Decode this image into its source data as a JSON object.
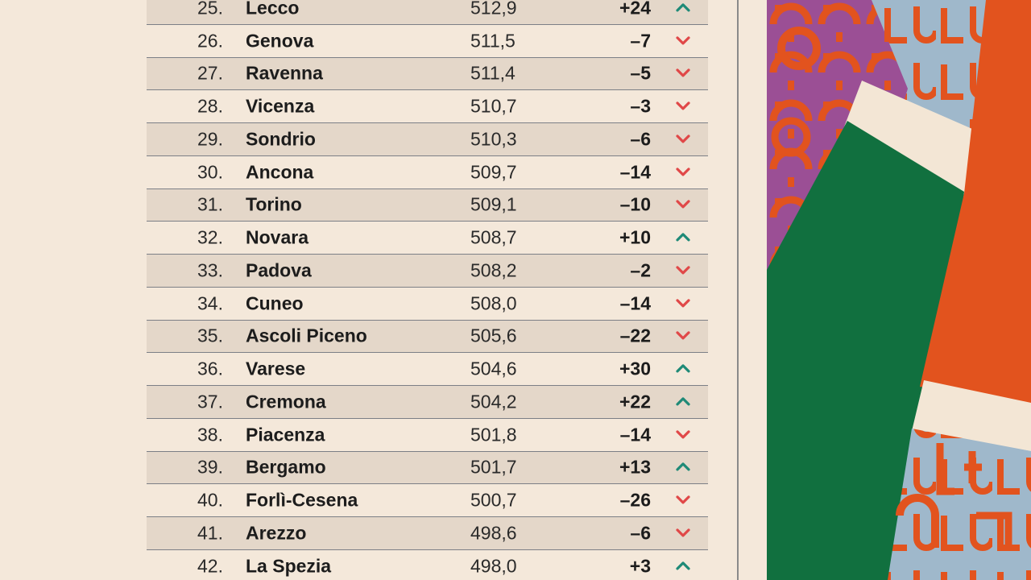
{
  "table": {
    "rows": [
      {
        "rank": "25.",
        "name": "Lecco",
        "score": "512,9",
        "change": "+24",
        "trend": "up"
      },
      {
        "rank": "26.",
        "name": "Genova",
        "score": "511,5",
        "change": "–7",
        "trend": "down"
      },
      {
        "rank": "27.",
        "name": "Ravenna",
        "score": "511,4",
        "change": "–5",
        "trend": "down"
      },
      {
        "rank": "28.",
        "name": "Vicenza",
        "score": "510,7",
        "change": "–3",
        "trend": "down"
      },
      {
        "rank": "29.",
        "name": "Sondrio",
        "score": "510,3",
        "change": "–6",
        "trend": "down"
      },
      {
        "rank": "30.",
        "name": "Ancona",
        "score": "509,7",
        "change": "–14",
        "trend": "down"
      },
      {
        "rank": "31.",
        "name": "Torino",
        "score": "509,1",
        "change": "–10",
        "trend": "down"
      },
      {
        "rank": "32.",
        "name": "Novara",
        "score": "508,7",
        "change": "+10",
        "trend": "up"
      },
      {
        "rank": "33.",
        "name": "Padova",
        "score": "508,2",
        "change": "–2",
        "trend": "down"
      },
      {
        "rank": "34.",
        "name": "Cuneo",
        "score": "508,0",
        "change": "–14",
        "trend": "down"
      },
      {
        "rank": "35.",
        "name": "Ascoli Piceno",
        "score": "505,6",
        "change": "–22",
        "trend": "down"
      },
      {
        "rank": "36.",
        "name": "Varese",
        "score": "504,6",
        "change": "+30",
        "trend": "up"
      },
      {
        "rank": "37.",
        "name": "Cremona",
        "score": "504,2",
        "change": "+22",
        "trend": "up"
      },
      {
        "rank": "38.",
        "name": "Piacenza",
        "score": "501,8",
        "change": "–14",
        "trend": "down"
      },
      {
        "rank": "39.",
        "name": "Bergamo",
        "score": "501,7",
        "change": "+13",
        "trend": "up"
      },
      {
        "rank": "40.",
        "name": "Forlì-Cesena",
        "score": "500,7",
        "change": "–26",
        "trend": "down"
      },
      {
        "rank": "41.",
        "name": "Arezzo",
        "score": "498,6",
        "change": "–6",
        "trend": "down"
      },
      {
        "rank": "42.",
        "name": "La Spezia",
        "score": "498,0",
        "change": "+3",
        "trend": "up"
      }
    ]
  },
  "icons": {
    "up": "chevron-up-icon",
    "down": "chevron-down-icon"
  },
  "colors": {
    "background": "#f4e8da",
    "row_shade": "#e4d7c9",
    "up": "#1f8a77",
    "down": "#e04848",
    "art_green": "#11703f",
    "art_orange": "#e2531e",
    "art_blue": "#9fb8cb",
    "art_purple": "#9b4f95",
    "art_cream": "#f3e6d5"
  }
}
